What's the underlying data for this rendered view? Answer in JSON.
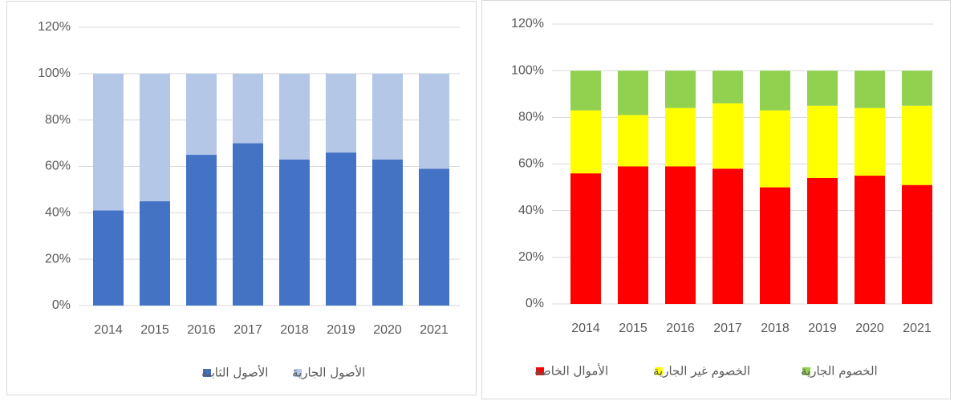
{
  "chart_data": [
    {
      "type": "stacked_bar",
      "categories": [
        "2014",
        "2015",
        "2016",
        "2017",
        "2018",
        "2019",
        "2020",
        "2021"
      ],
      "series": [
        {
          "name": "الأصول الثابتة",
          "color": "#4472c4",
          "values": [
            41,
            45,
            65,
            70,
            63,
            66,
            63,
            59
          ]
        },
        {
          "name": "الأصول الجارية",
          "color": "#b4c7e7",
          "values": [
            59,
            55,
            35,
            30,
            37,
            34,
            37,
            41
          ]
        }
      ],
      "ylim": [
        0,
        120
      ],
      "yticks": [
        {
          "value": 0,
          "label": "0%"
        },
        {
          "value": 20,
          "label": "20%"
        },
        {
          "value": 40,
          "label": "40%"
        },
        {
          "value": 60,
          "label": "60%"
        },
        {
          "value": 80,
          "label": "80%"
        },
        {
          "value": 100,
          "label": "100%"
        },
        {
          "value": 120,
          "label": "120%"
        }
      ],
      "grid": true,
      "legend": "bottom"
    },
    {
      "type": "stacked_bar",
      "categories": [
        "2014",
        "2015",
        "2016",
        "2017",
        "2018",
        "2019",
        "2020",
        "2021"
      ],
      "series": [
        {
          "name": "الأموال الخاصة",
          "color": "#ff0000",
          "values": [
            56,
            59,
            59,
            58,
            50,
            54,
            55,
            51
          ]
        },
        {
          "name": "الخصوم غير الجارية",
          "color": "#ffff00",
          "values": [
            27,
            22,
            25,
            28,
            33,
            31,
            29,
            34
          ]
        },
        {
          "name": "الخصوم الجارية",
          "color": "#92d050",
          "values": [
            17,
            19,
            16,
            14,
            17,
            15,
            16,
            15
          ]
        }
      ],
      "ylim": [
        0,
        120
      ],
      "yticks": [
        {
          "value": 0,
          "label": "0%"
        },
        {
          "value": 20,
          "label": "20%"
        },
        {
          "value": 40,
          "label": "40%"
        },
        {
          "value": 60,
          "label": "60%"
        },
        {
          "value": 80,
          "label": "80%"
        },
        {
          "value": 100,
          "label": "100%"
        },
        {
          "value": 120,
          "label": "120%"
        }
      ],
      "grid": true,
      "legend": "bottom"
    }
  ]
}
